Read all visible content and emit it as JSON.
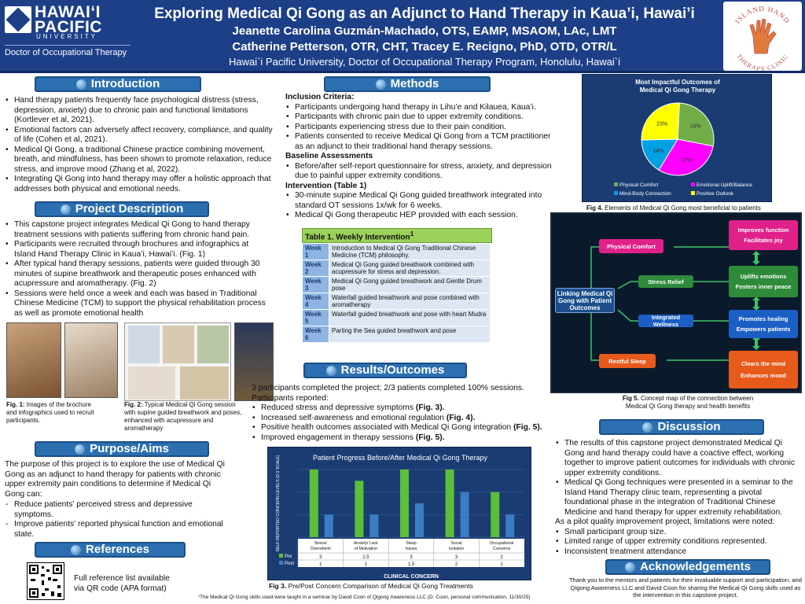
{
  "header": {
    "logo_name": "HAWAIʻI PACIFIC",
    "logo_university": "UNIVERSITY",
    "logo_program": "Doctor of Occupational Therapy",
    "title": "Exploring Medical Qi Gong as an Adjunct to Hand Therapy in Kaua’i, Hawai’i",
    "authors_line1": "Jeanette Carolina Guzmán-Machado, OTS, EAMP, MSAOM, LAc, LMT",
    "authors_line2": "Catherine Petterson, OTR, CHT, Tracey E. Recigno, PhD, OTD, OTR/L",
    "affiliation": "Hawai`i Pacific University, Doctor of Occupational Therapy Program, Honolulu, Hawai`i",
    "clinic_logo_text_top": "ISLAND HAND",
    "clinic_logo_text_bottom": "THERAPY CLINIC"
  },
  "introduction": {
    "heading": "Introduction",
    "bullets": [
      "Hand therapy patients frequently face psychological distress (stress, depression, anxiety) due to chronic pain and functional limitations (Kortlever et al, 2021).",
      "Emotional factors can adversely affect recovery, compliance, and quality of life (Cohen et al, 2021).",
      "Medical Qi Gong, a traditional Chinese practice combining movement, breath, and mindfulness, has been shown to promote relaxation, reduce stress, and improve mood (Zhang et al, 2022).",
      "Integrating Qi Gong into hand therapy may offer a holistic approach that addresses both physical and emotional needs."
    ]
  },
  "project": {
    "heading": "Project Description",
    "bullets": [
      "This capstone project integrates Medical Qi Gong to hand therapy treatment sessions with patients suffering from chronic hand pain.",
      "Participants were recruited through brochures and infographics at Island Hand Therapy Clinic in Kaua’i, Hawai’i. (Fig. 1)",
      "After typical hand therapy sessions, patients were guided through 30 minutes of supine breathwork and therapeutic poses enhanced with acupressure and aromatherapy. (Fig. 2)",
      "Sessions were held once a week and each was based in Traditional Chinese Medicine (TCM) to support the physical rehabilitation process as well as promote emotional health"
    ],
    "fig1_caption_bold": "Fig. 1:",
    "fig1_caption": " Images of the brochure and infographics used to recruit participants.",
    "fig2_caption_bold": "Fig. 2:",
    "fig2_caption": " Typical Medical Qi Gong session with supine guided breathwork and poses, enhanced with acupressure and aromatherapy"
  },
  "purpose": {
    "heading": "Purpose/Aims",
    "text": "The purpose of this project is to explore the use of Medical Qi Gong as an adjunct to hand therapy for patients with chronic upper extremity pain conditions to determine if Medical Qi Gong can:",
    "bullets": [
      "Reduce patients' perceived stress and depressive symptoms.",
      "Improve patients' reported physical function and emotional state."
    ]
  },
  "references": {
    "heading": "References",
    "text_line1": "Full reference list available",
    "text_line2": "via QR code (APA format)"
  },
  "methods": {
    "heading": "Methods",
    "inclusion_label": "Inclusion Criteria:",
    "inclusion": [
      "Participants undergoing hand therapy in Lihu’e and Kilauea, Kaua’i.",
      "Participants with chronic pain due to upper extremity conditions.",
      "Participants experiencing stress due to their pain condition.",
      "Patients consented to receive Medical Qi Gong from a TCM practitioner as an adjunct to their traditional hand therapy sessions."
    ],
    "baseline_label": "Baseline Assessments",
    "baseline": [
      "Before/after self-report questionnaire for stress, anxiety, and depression due to painful upper extremity conditions."
    ],
    "intervention_label": "Intervention (Table 1)",
    "intervention": [
      "30-minute supine Medical Qi Gong guided breathwork integrated into standard OT sessions 1x/wk for 6 weeks.",
      "Medical Qi Gong therapeutic HEP provided with each session."
    ],
    "table_title": "Table 1. Weekly Intervention",
    "table_sup": "1",
    "weeks": [
      {
        "week": "Week 1",
        "desc": "Introduction to Medical Qi Gong Traditional Chinese Medicine (TCM) philosophy."
      },
      {
        "week": "Week 2",
        "desc": "Medical Qi Gong guided breathwork combined with acupressure for stress and depression."
      },
      {
        "week": "Week 3",
        "desc": "Medical Qi Gong guided breathwork and Gentle Drum pose"
      },
      {
        "week": "Week 4",
        "desc": "Waterfall guided breathwork and pose combined with aromatherapy"
      },
      {
        "week": "Week 5",
        "desc": "Waterfall guided breathwork and pose with heart Mudra"
      },
      {
        "week": "Week 6",
        "desc": "Parting the Sea guided breathwork and pose"
      }
    ]
  },
  "results": {
    "heading": "Results/Outcomes",
    "line1": "3 participants completed the project; 2/3 patients completed 100% sessions.",
    "line2": "Participants reported:",
    "bullets": [
      {
        "text": "Reduced stress and depressive symptoms ",
        "ref": "(Fig. 3)."
      },
      {
        "text": "Increased self-awareness and emotional regulation ",
        "ref": "(Fig. 4)."
      },
      {
        "text": "Positive health outcomes associated with Medical Qi Gong integration ",
        "ref": "(Fig. 5)."
      },
      {
        "text": "Improved engagement in therapy sessions ",
        "ref": "(Fig. 5)."
      }
    ],
    "fig3_caption_bold": "Fig 3.",
    "fig3_caption": " Pre/Post Concern Comparison of Medical Qi Gong Treatments",
    "footnote": "¹The  Medical Qi Gong skills used were taught in a seminar by David Coon of Qigong Awareness LLC (D. Coon, personal communication, 11/30/25)"
  },
  "chart_data": [
    {
      "type": "bar",
      "title": "Patient Progress Before/After Medical Qi Gong Therapy",
      "xlabel": "CLINICAL CONCERN",
      "ylabel": "SELF-REPORTED CONCERN LEVELS (0-3 SCALE)",
      "ylim": [
        0,
        3
      ],
      "grid": true,
      "categories": [
        "Stress/ Overwhelm",
        "Anxiety/ Lack of Motivation",
        "Sleep Issues",
        "Social Isolation",
        "Occupational Concerns"
      ],
      "series": [
        {
          "name": "Pre",
          "color": "#5cbf3a",
          "values": [
            3,
            2.5,
            3,
            3,
            2
          ],
          "labels": [
            "3",
            "2.5",
            "3",
            "3",
            "2"
          ]
        },
        {
          "name": "Post",
          "color": "#3b7dc4",
          "values": [
            1,
            1,
            1.5,
            2,
            1
          ],
          "labels": [
            "1",
            "1",
            "1.5",
            "2",
            "1"
          ]
        }
      ]
    },
    {
      "type": "pie",
      "title": "Most Impactful Outcomes of Medical Qi Gong Therapy",
      "slices": [
        {
          "name": "Physical Comfort",
          "value": 24,
          "label": "24%",
          "color": "#70ad47"
        },
        {
          "name": "Emotional Uplift/Balance",
          "value": 27,
          "label": "27%",
          "color": "#ff00ff"
        },
        {
          "name": "Mind-Body Connection",
          "value": 14,
          "label": "14%",
          "color": "#00a0e3"
        },
        {
          "name": "Positive Outlook",
          "value": 23,
          "label": "23%",
          "color": "#ffff00"
        }
      ]
    }
  ],
  "fig4": {
    "caption_bold": "Fig 4.",
    "caption": " Elements of Medical Qi Gong most beneficial to patients"
  },
  "concept_map": {
    "center": "Linking Medical Qi Gong with Patient Outcomes",
    "branches": [
      {
        "label": "Physical Comfort",
        "color": "#e0218a",
        "outcome": [
          "Improves function",
          "Facilitates joy"
        ],
        "outcome_color": "#e0218a"
      },
      {
        "label": "Stress Relief",
        "color": "#2e8b3a",
        "outcome": [
          "Uplifts emotions",
          "Fosters inner peace"
        ],
        "outcome_color": "#2e8b3a"
      },
      {
        "label": "Integrated Wellness",
        "color": "#1c5fc4",
        "outcome": [
          "Promotes healing",
          "Empowers patients"
        ],
        "outcome_color": "#1c5fc4"
      },
      {
        "label": "Restful Sleep",
        "color": "#e65a1c",
        "outcome": [
          "Clears the mind",
          "Enhances mood"
        ],
        "outcome_color": "#e65a1c"
      }
    ],
    "caption_bold": "Fig 5.",
    "caption_line1": " Concept map of the connection between",
    "caption_line2": "Medical Qi Gong therapy and health benefits"
  },
  "discussion": {
    "heading": "Discussion",
    "bullets": [
      "The results of this capstone project demonstrated Medical Qi Gong and hand therapy could have a coactive effect, working together to improve patient outcomes for individuals with chronic upper extremity conditions.",
      "Medical Qi Gong techniques were presented in a seminar to the Island Hand Therapy clinic team, representing a pivotal foundational  phase in the integration of Traditional Chinese Medicine and hand therapy for upper extremity rehabilitation."
    ],
    "limits_intro": "As a pilot quality improvement project, limitations were noted:",
    "limits": [
      "Small participant group size.",
      "Limited range of upper extremity conditions represented.",
      "Inconsistent treatment attendance"
    ]
  },
  "acknowledgements": {
    "heading": "Acknowledgements",
    "text": "Thank you to the mentors and patients for their invaluable support and participation, and Qigong Awareness LLC and David Coon for sharing the Medical Qi Gong skills used as the intervention in this capstone project."
  }
}
